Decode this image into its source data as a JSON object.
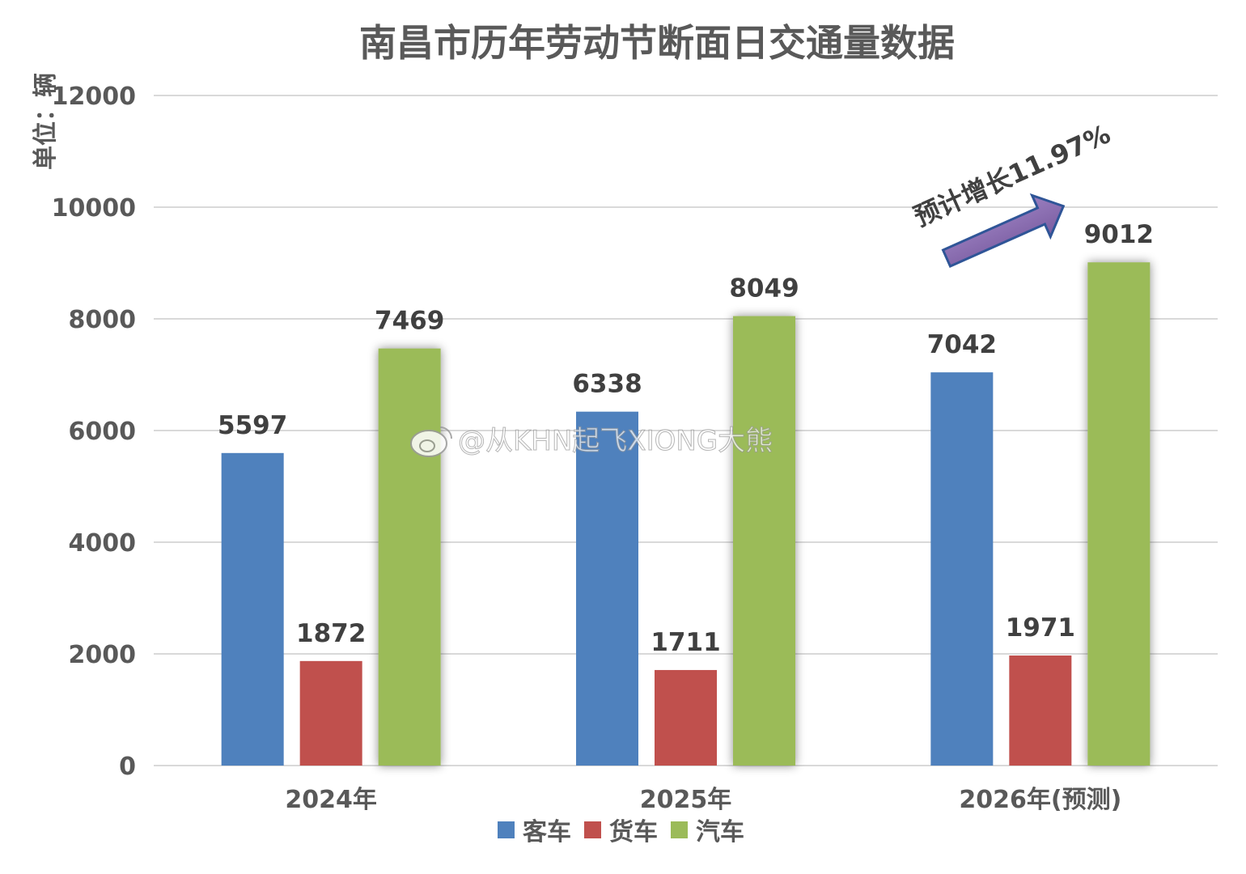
{
  "chart_data": {
    "type": "bar",
    "title": "南昌市历年劳动节断面日交通量数据",
    "ylabel": "单位：辆",
    "xlabel": "",
    "categories": [
      "2024年",
      "2025年",
      "2026年(预测)"
    ],
    "series": [
      {
        "name": "客车",
        "color": "#4F81BD",
        "values": [
          5597,
          6338,
          7042
        ]
      },
      {
        "name": "货车",
        "color": "#C0504D",
        "values": [
          1872,
          1711,
          1971
        ]
      },
      {
        "name": "汽车",
        "color": "#9BBB59",
        "values": [
          7469,
          8049,
          9012
        ]
      }
    ],
    "ylim": [
      0,
      12000
    ],
    "yticks": [
      "0",
      "2000",
      "4000",
      "6000",
      "8000",
      "10000",
      "12000"
    ],
    "grid": true,
    "legend_position": "bottom",
    "annotation": {
      "text": "预计增长11.97%",
      "arrow_color": "#8064A2"
    }
  },
  "watermark": {
    "text": "@从KHN起飞XIONG大熊",
    "icon": "weibo-icon"
  }
}
